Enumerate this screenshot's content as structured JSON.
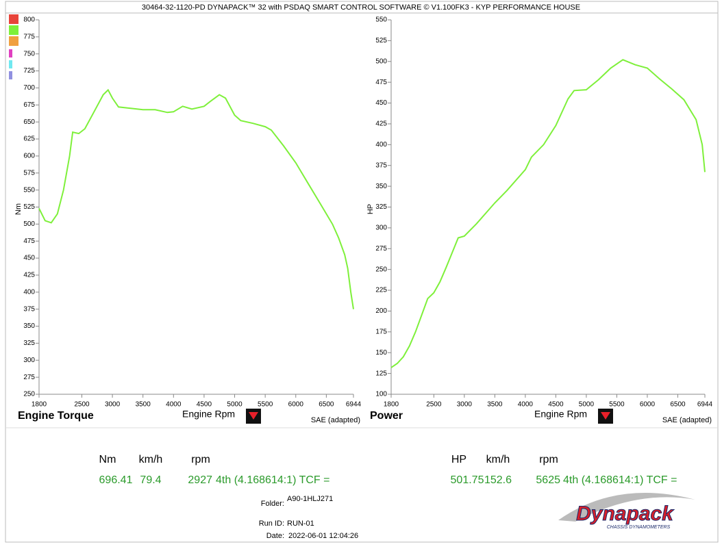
{
  "header": {
    "title": "30464-32-1120-PD DYNAPACK™ 32 with PSDAQ SMART CONTROL SOFTWARE © V1.100FK3 - KYP PERFORMANCE HOUSE"
  },
  "chart_data": [
    {
      "type": "line",
      "title": "Engine Torque",
      "xlabel": "Engine Rpm",
      "ylabel": "Nm",
      "note": "SAE (adapted)",
      "color": "#7ef03a",
      "x": [
        1800,
        1900,
        2000,
        2100,
        2200,
        2300,
        2350,
        2450,
        2550,
        2700,
        2850,
        2930,
        3000,
        3100,
        3300,
        3500,
        3700,
        3900,
        4000,
        4150,
        4300,
        4500,
        4600,
        4750,
        4850,
        5000,
        5100,
        5300,
        5500,
        5600,
        5800,
        6000,
        6200,
        6400,
        6600,
        6700,
        6800,
        6850,
        6900,
        6944
      ],
      "values": [
        523,
        505,
        502,
        515,
        550,
        600,
        635,
        633,
        640,
        665,
        690,
        697,
        685,
        672,
        670,
        668,
        668,
        664,
        665,
        673,
        669,
        673,
        680,
        690,
        685,
        660,
        652,
        648,
        643,
        638,
        615,
        590,
        560,
        530,
        500,
        480,
        455,
        435,
        400,
        375
      ],
      "xlim": [
        1800,
        6944
      ],
      "ylim": [
        250,
        800
      ],
      "xticks": [
        1800,
        2500,
        3000,
        3500,
        4000,
        4500,
        5000,
        5500,
        6000,
        6500,
        6944
      ],
      "yticks": [
        250,
        275,
        300,
        325,
        350,
        375,
        400,
        425,
        450,
        475,
        500,
        525,
        550,
        575,
        600,
        625,
        650,
        675,
        700,
        725,
        750,
        775,
        800
      ]
    },
    {
      "type": "line",
      "title": "Power",
      "xlabel": "Engine Rpm",
      "ylabel": "HP",
      "note": "SAE (adapted)",
      "color": "#7ef03a",
      "x": [
        1800,
        1900,
        2000,
        2100,
        2200,
        2300,
        2400,
        2500,
        2600,
        2700,
        2800,
        2900,
        3000,
        3200,
        3500,
        3700,
        4000,
        4100,
        4300,
        4500,
        4700,
        4800,
        5000,
        5200,
        5400,
        5600,
        5800,
        6000,
        6200,
        6400,
        6600,
        6800,
        6900,
        6944
      ],
      "values": [
        132,
        137,
        145,
        158,
        175,
        195,
        215,
        222,
        235,
        252,
        270,
        288,
        290,
        305,
        330,
        345,
        370,
        385,
        400,
        423,
        455,
        465,
        466,
        478,
        492,
        502,
        496,
        492,
        479,
        467,
        454,
        430,
        400,
        367
      ],
      "xlim": [
        1800,
        6944
      ],
      "ylim": [
        100,
        550
      ],
      "xticks": [
        1800,
        2500,
        3000,
        3500,
        4000,
        4500,
        5000,
        5500,
        6000,
        6500,
        6944
      ],
      "yticks": [
        100,
        125,
        150,
        175,
        200,
        225,
        250,
        275,
        300,
        325,
        350,
        375,
        400,
        425,
        450,
        475,
        500,
        525,
        550
      ]
    }
  ],
  "readouts": [
    {
      "headers": [
        "Nm",
        "km/h",
        "rpm"
      ],
      "values": [
        696.41,
        79.4,
        2927
      ],
      "gear": "4th (4.168614:1) TCF ="
    },
    {
      "headers": [
        "HP",
        "km/h",
        "rpm"
      ],
      "values": [
        501.75,
        152.6,
        5625
      ],
      "gear": "4th (4.168614:1) TCF ="
    }
  ],
  "info": {
    "folder_label": "Folder:",
    "folder": "A90-1HLJ271",
    "run_label": "Run ID:",
    "run": "RUN-01",
    "date_label": "Date:",
    "date": "2022-06-01 12:04:26"
  },
  "logo": {
    "name": "Dynapack",
    "tagline": "CHASSIS DYNAMOMETERS"
  }
}
